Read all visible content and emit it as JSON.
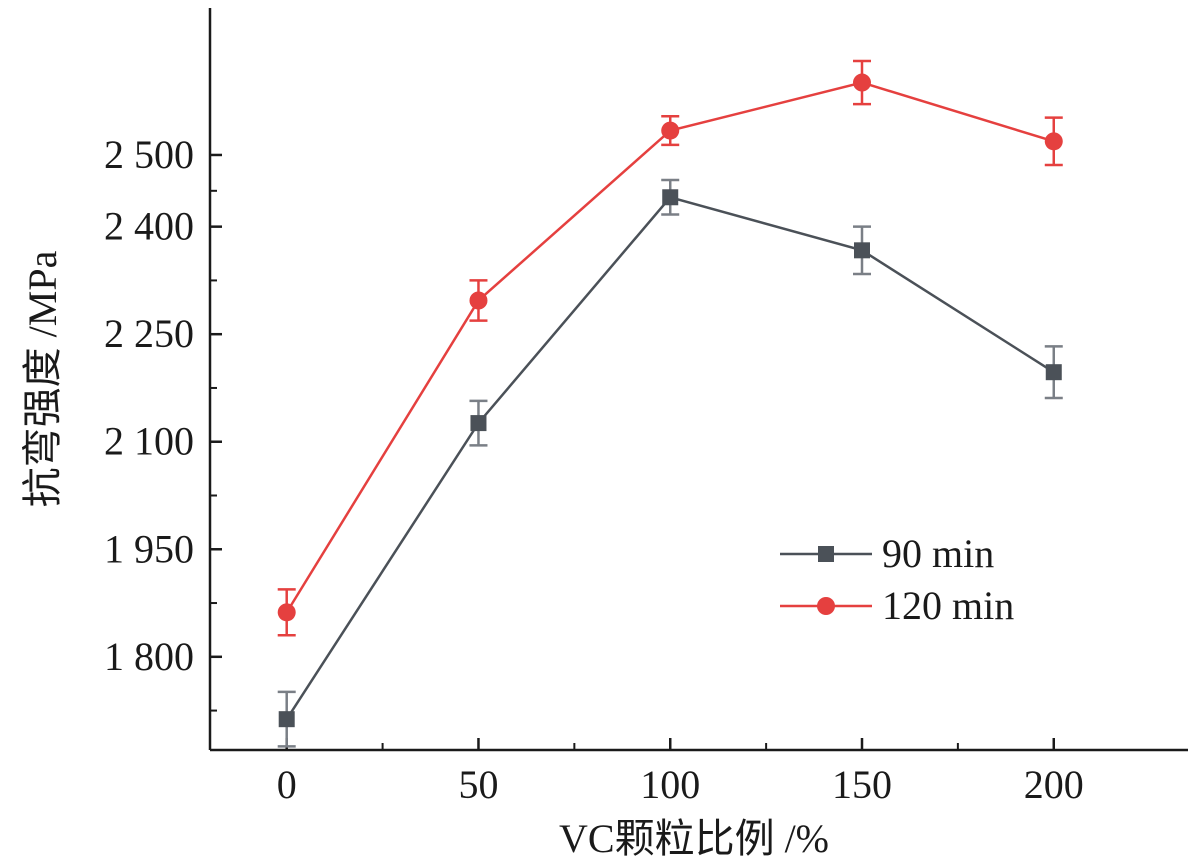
{
  "chart_data": {
    "type": "line",
    "title": "",
    "xlabel": "VC颗粒比例 /%",
    "ylabel": "抗弯强度 /MPa",
    "x": [
      0,
      50,
      100,
      150,
      200
    ],
    "xlim": [
      -20,
      235
    ],
    "ylim": [
      1670,
      2705
    ],
    "x_ticks": [
      0,
      50,
      100,
      150,
      200
    ],
    "x_tick_labels": [
      "0",
      "50",
      "100",
      "150",
      "200"
    ],
    "y_ticks": [
      1800,
      1950,
      2100,
      2250,
      2400,
      2500
    ],
    "y_tick_labels": [
      "1 800",
      "1 950",
      "2 100",
      "2 250",
      "2 400",
      "2 500"
    ],
    "grid": false,
    "legend_position": "lower-right",
    "series": [
      {
        "name": "90 min",
        "marker": "square",
        "color": "#4b5158",
        "values": [
          1713,
          2126,
          2441,
          2367,
          2197
        ],
        "errors": [
          38,
          31,
          24,
          33,
          36
        ]
      },
      {
        "name": "120 min",
        "marker": "circle",
        "color": "#e5403f",
        "values": [
          1862,
          2297,
          2534,
          2601,
          2519
        ],
        "errors": [
          32,
          28,
          20,
          30,
          33
        ]
      }
    ]
  }
}
